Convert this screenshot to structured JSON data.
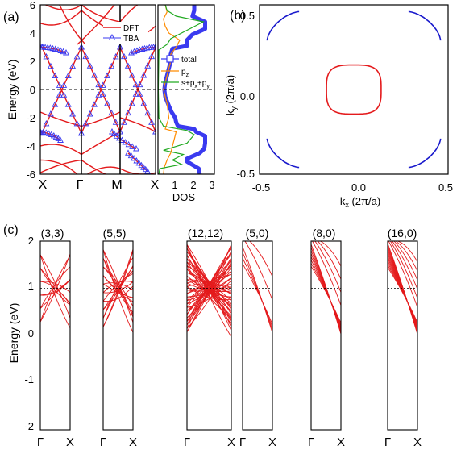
{
  "panel_labels": {
    "a": "(a)",
    "b": "(b)",
    "c": "(c)"
  },
  "panel_a": {
    "ylabel": "Energy (eV)",
    "yticks": [
      "6",
      "4",
      "2",
      "0",
      "-2",
      "-4",
      "-6"
    ],
    "kpoints": [
      "X",
      "Γ",
      "M",
      "X"
    ],
    "legend": {
      "dft": "DFT",
      "tba": "TBA"
    },
    "dos_xlabel": "DOS",
    "dos_xticks": [
      "1",
      "2",
      "3"
    ],
    "dos_legend": {
      "total": "total",
      "pz": "p",
      "pz_sub": "z",
      "sp": "s+p",
      "sp_sub1": "x",
      "sp_mid": "+p",
      "sp_sub2": "y"
    },
    "colors": {
      "dft": "#e41a1c",
      "tba": "#3a3af0",
      "pz": "#ff8c00",
      "sp": "#22aa22",
      "total": "#3a3af0"
    }
  },
  "panel_b": {
    "xlabel_pre": "k",
    "xlabel_sub": "x",
    "xlabel_post": " (2π/a)",
    "ylabel_pre": "k",
    "ylabel_sub": "y",
    "ylabel_post": " (2π/a)",
    "xticks": [
      "-0.5",
      "0.0",
      "0.5"
    ],
    "yticks": [
      "0.5",
      "0.0",
      "-0.5"
    ],
    "colors": {
      "center": "#e41a1c",
      "corners": "#1a1acc"
    }
  },
  "panel_c": {
    "ylabel": "Energy (eV)",
    "yticks": [
      "2",
      "1",
      "0",
      "-1",
      "-2"
    ],
    "kstart": "Γ",
    "kend": "X",
    "titles": [
      "(3,3)",
      "(5,5)",
      "(12,12)",
      "(5,0)",
      "(8,0)",
      "(16,0)"
    ],
    "line_color": "#e41a1c"
  },
  "chart_data": [
    {
      "type": "line",
      "title": "",
      "ylabel": "Energy (eV)",
      "ylim": [
        -6,
        6
      ],
      "categories": [
        "X",
        "Γ",
        "M",
        "X"
      ],
      "series": [
        {
          "name": "DFT"
        },
        {
          "name": "TBA"
        }
      ],
      "fermi_level": 0
    },
    {
      "type": "line",
      "xlabel": "DOS",
      "xlim": [
        0,
        3
      ],
      "ylim": [
        -6,
        6
      ],
      "series": [
        {
          "name": "total"
        },
        {
          "name": "pz"
        },
        {
          "name": "s+px+py"
        }
      ]
    },
    {
      "type": "line",
      "xlabel": "kx (2π/a)",
      "ylabel": "ky (2π/a)",
      "xlim": [
        -0.5,
        0.5
      ],
      "ylim": [
        -0.5,
        0.5
      ]
    },
    {
      "type": "line",
      "ylabel": "Energy (eV)",
      "ylim": [
        -2,
        2
      ],
      "panels": [
        "(3,3)",
        "(5,5)",
        "(12,12)",
        "(5,0)",
        "(8,0)",
        "(16,0)"
      ],
      "x_endpoints": [
        "Γ",
        "X"
      ],
      "fermi_level": 0
    }
  ]
}
